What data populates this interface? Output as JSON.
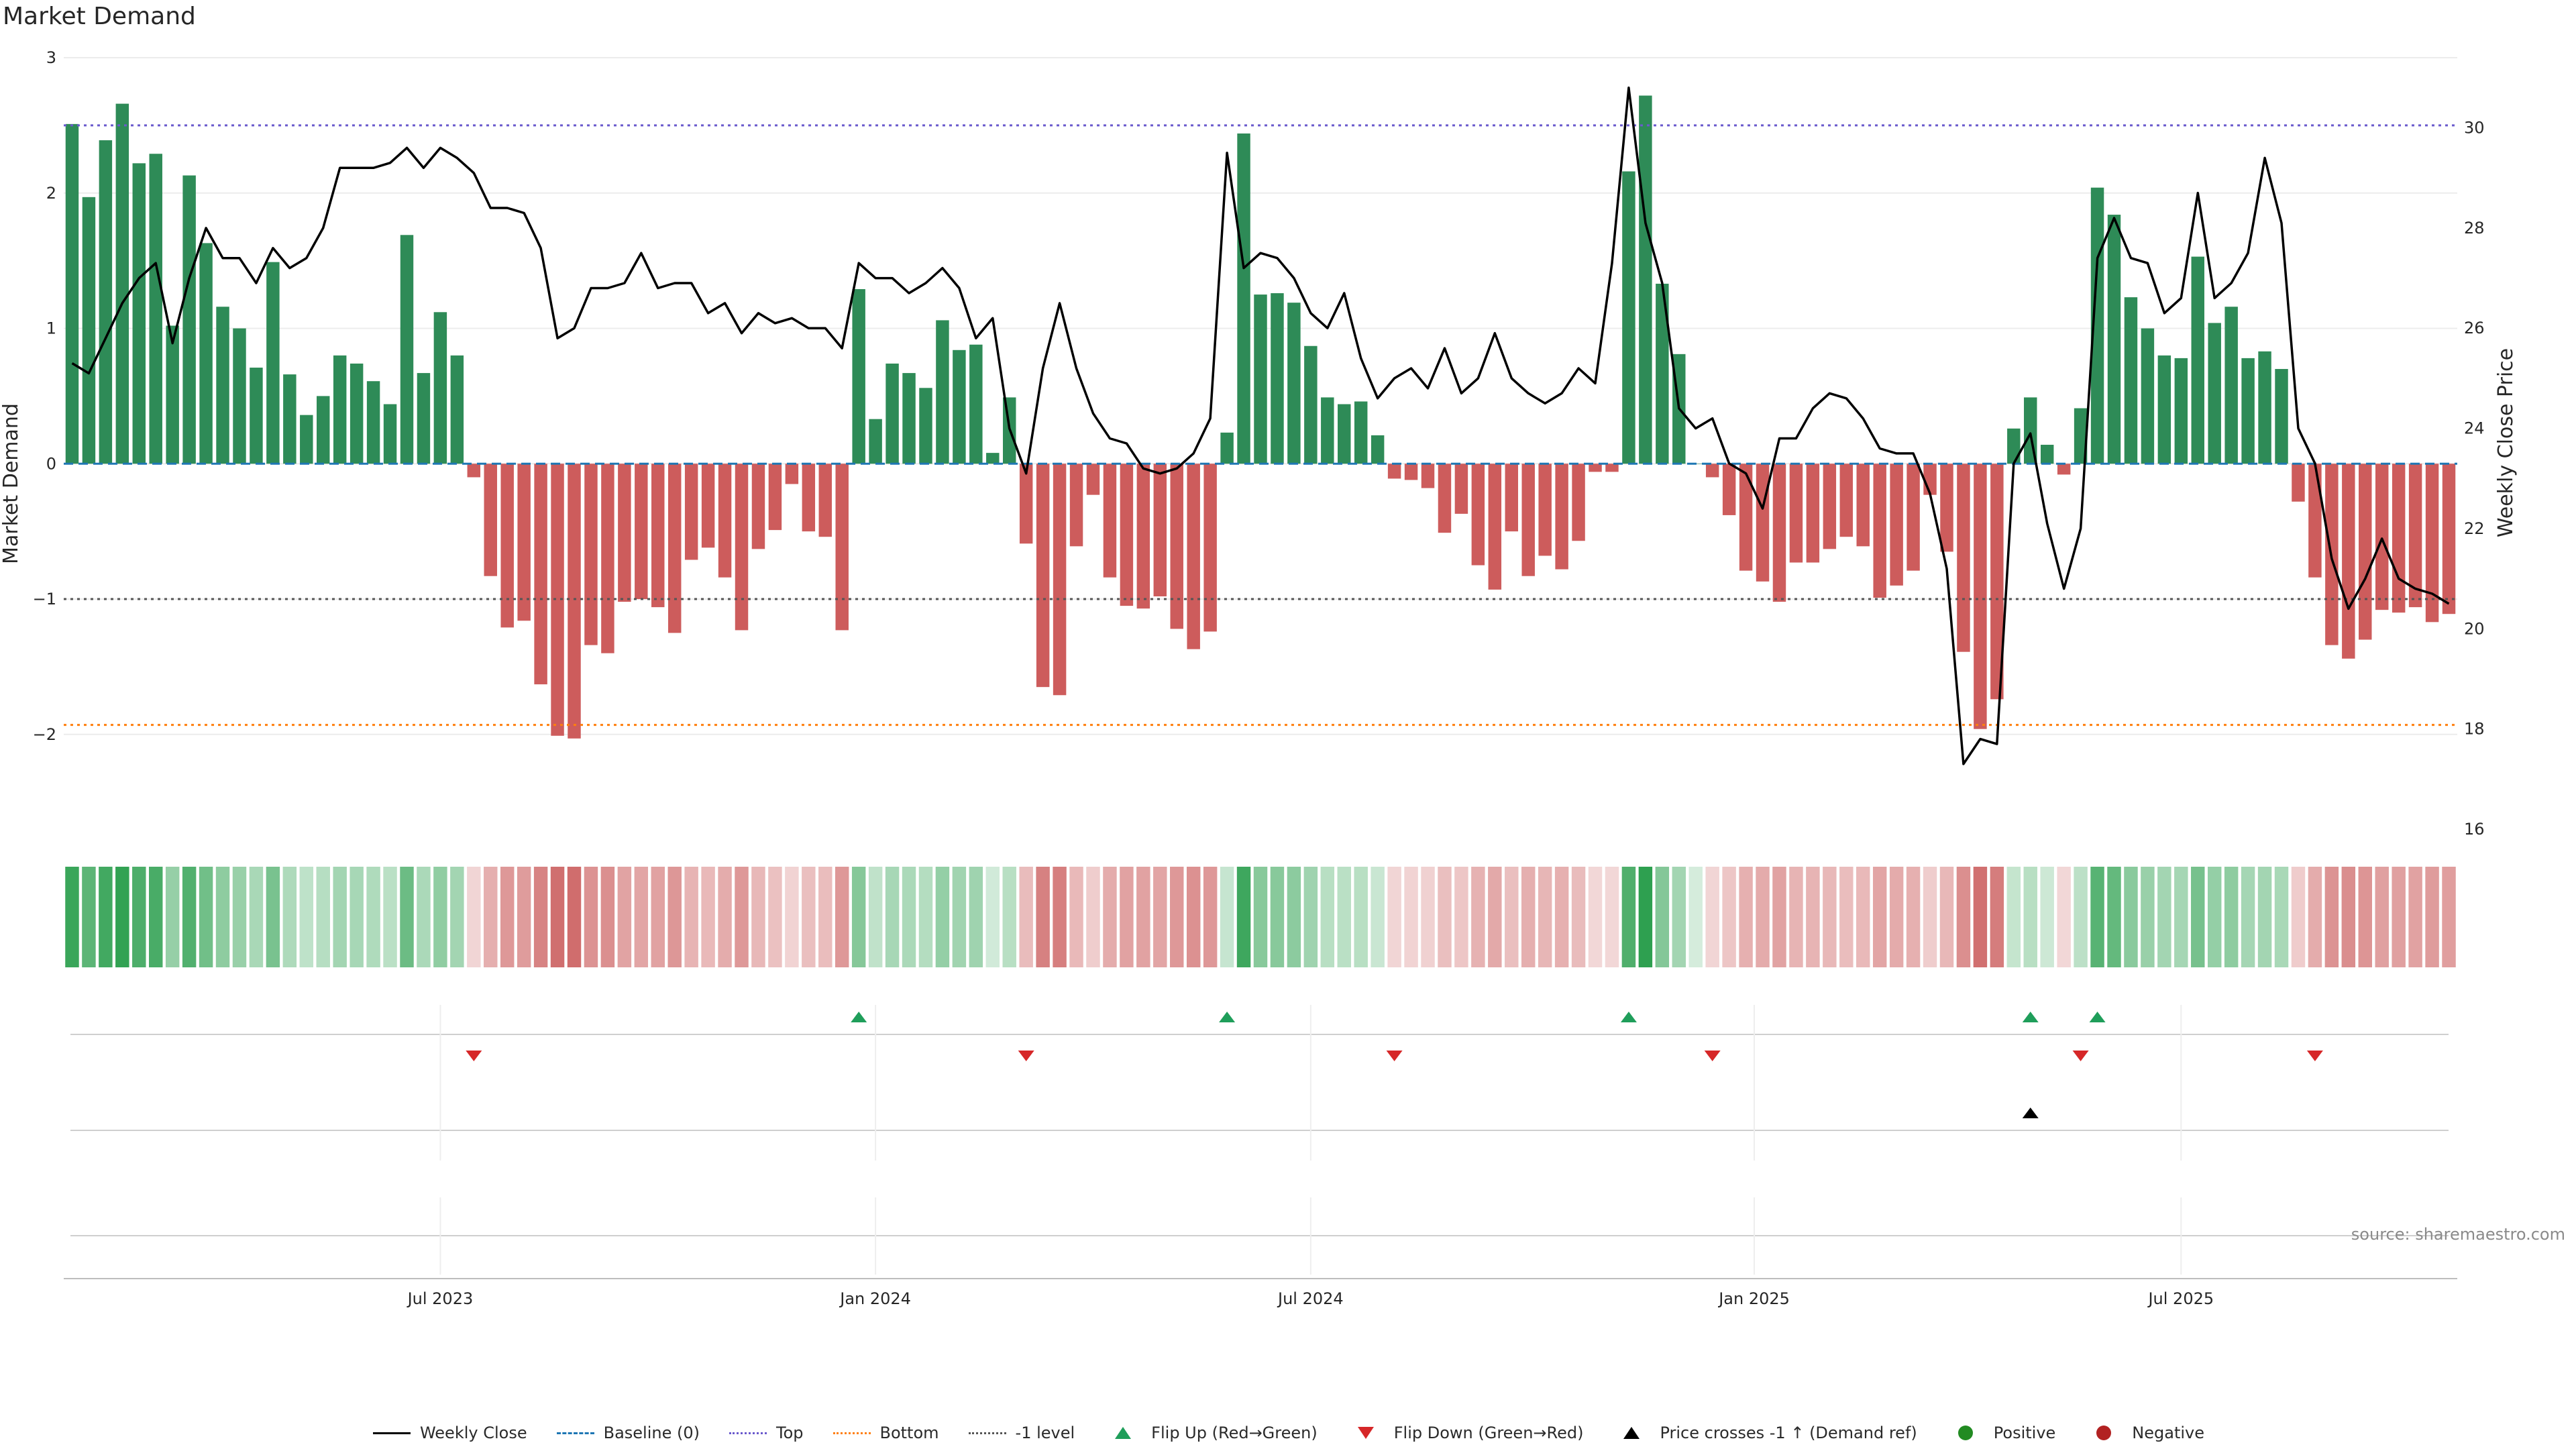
{
  "title": "Market Demand",
  "source": "source: sharemaestro.com",
  "colors": {
    "positive": "#2e8b57",
    "negative": "#cd5c5c",
    "price": "#000000",
    "baseline": "#1f77b4",
    "top": "#6a5acd",
    "bottom": "#ff7f0e",
    "minus1": "#555555",
    "flip_up": "#1f9e5a",
    "flip_down": "#d62728",
    "positive_dot": "#228b22",
    "negative_dot": "#b22222"
  },
  "legend": [
    {
      "label": "Weekly Close",
      "kind": "line",
      "color": "#000000"
    },
    {
      "label": "Baseline (0)",
      "kind": "dash",
      "color": "#1f77b4"
    },
    {
      "label": "Top",
      "kind": "dot",
      "color": "#6a5acd"
    },
    {
      "label": "Bottom",
      "kind": "dot",
      "color": "#ff7f0e"
    },
    {
      "label": "-1 level",
      "kind": "dot",
      "color": "#555555"
    },
    {
      "label": "Flip Up (Red→Green)",
      "kind": "tri-up",
      "color": "#1f9e5a"
    },
    {
      "label": "Flip Down (Green→Red)",
      "kind": "tri-down",
      "color": "#d62728"
    },
    {
      "label": "Price crosses -1 ↑ (Demand ref)",
      "kind": "tri-black",
      "color": "#000000"
    },
    {
      "label": "Positive",
      "kind": "dot-fill",
      "color": "#228b22"
    },
    {
      "label": "Negative",
      "kind": "dot-fill",
      "color": "#b22222"
    }
  ],
  "chart_data": {
    "type": "bar",
    "ylabel": "Market Demand",
    "y2label": "Weekly Close Price",
    "ylim": [
      -2.7,
      3
    ],
    "yticks": [
      3,
      2,
      1,
      0,
      -1,
      -2
    ],
    "ytick_labels": [
      "3",
      "2",
      "1",
      "0",
      "−1",
      "−2"
    ],
    "y2lim": [
      16,
      31.4
    ],
    "y2ticks": [
      30,
      28,
      26,
      24,
      22,
      20,
      18,
      16
    ],
    "levels": {
      "top": 2.5,
      "bottom": -1.93,
      "minus1": -1,
      "baseline": 0
    },
    "xticks": [
      {
        "index": 22,
        "label": "Jul 2023"
      },
      {
        "index": 48,
        "label": "Jan 2024"
      },
      {
        "index": 74,
        "label": "Jul 2024"
      },
      {
        "index": 100.5,
        "label": "Jan 2025"
      },
      {
        "index": 126,
        "label": "Jul 2025"
      }
    ],
    "demand": [
      2.51,
      1.97,
      2.39,
      2.66,
      2.22,
      2.29,
      1.02,
      2.13,
      1.63,
      1.16,
      1.0,
      0.71,
      1.49,
      0.66,
      0.36,
      0.5,
      0.8,
      0.74,
      0.61,
      0.44,
      1.69,
      0.67,
      1.12,
      0.8,
      -0.1,
      -0.83,
      -1.21,
      -1.16,
      -1.63,
      -2.01,
      -2.03,
      -1.34,
      -1.4,
      -1.02,
      -1.0,
      -1.06,
      -1.25,
      -0.71,
      -0.62,
      -0.84,
      -1.23,
      -0.63,
      -0.49,
      -0.15,
      -0.5,
      -0.54,
      -1.23,
      1.29,
      0.33,
      0.74,
      0.67,
      0.56,
      1.06,
      0.84,
      0.88,
      0.08,
      0.49,
      -0.59,
      -1.65,
      -1.71,
      -0.61,
      -0.23,
      -0.84,
      -1.05,
      -1.07,
      -0.98,
      -1.22,
      -1.37,
      -1.24,
      0.23,
      2.44,
      1.25,
      1.26,
      1.19,
      0.87,
      0.49,
      0.44,
      0.46,
      0.21,
      -0.11,
      -0.12,
      -0.18,
      -0.51,
      -0.37,
      -0.75,
      -0.93,
      -0.5,
      -0.83,
      -0.68,
      -0.78,
      -0.57,
      -0.06,
      -0.06,
      2.16,
      2.72,
      1.33,
      0.81,
      0.0,
      -0.1,
      -0.38,
      -0.79,
      -0.87,
      -1.02,
      -0.73,
      -0.73,
      -0.63,
      -0.54,
      -0.61,
      -0.99,
      -0.9,
      -0.79,
      -0.23,
      -0.65,
      -1.39,
      -1.96,
      -1.74,
      0.26,
      0.49,
      0.14,
      -0.08,
      0.41,
      2.04,
      1.84,
      1.23,
      1.0,
      0.8,
      0.78,
      1.53,
      1.04,
      1.16,
      0.78,
      0.83,
      0.7,
      -0.28,
      -0.84,
      -1.34,
      -1.44,
      -1.3,
      -1.08,
      -1.1,
      -1.06,
      -1.17,
      -1.11
    ],
    "close": [
      25.3,
      25.1,
      25.8,
      26.5,
      27.0,
      27.3,
      25.7,
      27.0,
      28.0,
      27.4,
      27.4,
      26.9,
      27.6,
      27.2,
      27.4,
      28.0,
      29.2,
      29.2,
      29.2,
      29.3,
      29.6,
      29.2,
      29.6,
      29.4,
      29.1,
      28.4,
      28.4,
      28.3,
      27.6,
      25.8,
      26.0,
      26.8,
      26.8,
      26.9,
      27.5,
      26.8,
      26.9,
      26.9,
      26.3,
      26.5,
      25.9,
      26.3,
      26.1,
      26.2,
      26.0,
      26.0,
      25.6,
      27.3,
      27.0,
      27.0,
      26.7,
      26.9,
      27.2,
      26.8,
      25.8,
      26.2,
      24.0,
      23.1,
      25.2,
      26.5,
      25.2,
      24.3,
      23.8,
      23.7,
      23.2,
      23.1,
      23.2,
      23.5,
      24.2,
      29.5,
      27.2,
      27.5,
      27.4,
      27.0,
      26.3,
      26.0,
      26.7,
      25.4,
      24.6,
      25.0,
      25.2,
      24.8,
      25.6,
      24.7,
      25.0,
      25.9,
      25.0,
      24.7,
      24.5,
      24.7,
      25.2,
      24.9,
      27.3,
      30.8,
      28.1,
      26.9,
      24.4,
      24.0,
      24.2,
      23.3,
      23.1,
      22.4,
      23.8,
      23.8,
      24.4,
      24.7,
      24.6,
      24.2,
      23.6,
      23.5,
      23.5,
      22.7,
      21.2,
      17.3,
      17.8,
      17.7,
      23.3,
      23.9,
      22.1,
      20.8,
      22.0,
      27.4,
      28.2,
      27.4,
      27.3,
      26.3,
      26.6,
      28.7,
      26.6,
      26.9,
      27.5,
      29.4,
      28.1,
      24.0,
      23.3,
      21.4,
      20.4,
      21.0,
      21.8,
      21.0,
      20.8,
      20.7,
      20.5
    ],
    "flip_up_idx": [
      47,
      69,
      93,
      117,
      121
    ],
    "flip_down_idx": [
      24,
      57,
      79,
      98,
      120,
      134
    ],
    "price_cross_idx": [
      117
    ]
  }
}
